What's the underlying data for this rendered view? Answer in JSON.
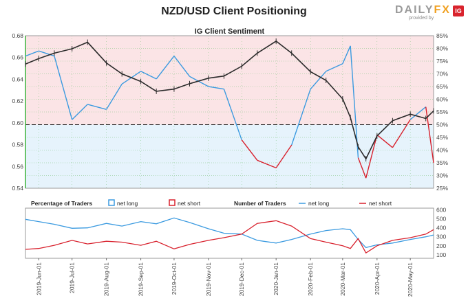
{
  "header": {
    "title": "NZD/USD Client Positioning",
    "brand": {
      "wordmark_main": "DAILY",
      "wordmark_fx": "FX",
      "byline": "provided by",
      "badge": "IG"
    }
  },
  "colors": {
    "price": "#2b2b2b",
    "net_long": "#3a9ae0",
    "net_short": "#d8202c",
    "long_zone": "#e6f3fc",
    "short_zone": "#fbe4e6",
    "grid": "#7cc47c",
    "top_axis_left": "#3bb33b"
  },
  "chart_data": [
    {
      "type": "line",
      "title": "IG Client Sentiment",
      "x": [
        "2019-05-20",
        "2019-06-01",
        "2019-06-15",
        "2019-07-01",
        "2019-07-15",
        "2019-08-01",
        "2019-08-15",
        "2019-09-01",
        "2019-09-15",
        "2019-10-01",
        "2019-10-15",
        "2019-11-01",
        "2019-11-15",
        "2019-12-01",
        "2019-12-15",
        "2020-01-01",
        "2020-01-15",
        "2020-02-01",
        "2020-02-15",
        "2020-03-01",
        "2020-03-08",
        "2020-03-15",
        "2020-03-22",
        "2020-04-01",
        "2020-04-15",
        "2020-05-01",
        "2020-05-15",
        "2020-05-22"
      ],
      "x_ticks": [
        "2019-Jun-01",
        "2019-Jul-01",
        "2019-Aug-01",
        "2019-Sep-01",
        "2019-Oct-01",
        "2019-Nov-01",
        "2019-Dec-01",
        "2020-Jan-01",
        "2020-Feb-01",
        "2020-Mar-01",
        "2020-Apr-01",
        "2020-May-01"
      ],
      "y_left_ticks": [
        "0.54",
        "0.56",
        "0.58",
        "0.60",
        "0.62",
        "0.64",
        "0.66",
        "0.68"
      ],
      "y_left_range": [
        0.54,
        0.68
      ],
      "y_right_ticks": [
        "25%",
        "30%",
        "35%",
        "40%",
        "45%",
        "50%",
        "55%",
        "60%",
        "65%",
        "70%",
        "75%",
        "80%",
        "85%"
      ],
      "y_right_range": [
        25,
        85
      ],
      "series": [
        {
          "name": "NZD/USD",
          "axis": "left",
          "values": [
            0.654,
            0.659,
            0.664,
            0.668,
            0.674,
            0.655,
            0.645,
            0.638,
            0.629,
            0.631,
            0.636,
            0.641,
            0.643,
            0.652,
            0.664,
            0.675,
            0.664,
            0.647,
            0.639,
            0.622,
            0.605,
            0.578,
            0.567,
            0.588,
            0.602,
            0.608,
            0.604,
            0.611
          ]
        },
        {
          "name": "net long",
          "axis": "right",
          "values": [
            77,
            79,
            77,
            52,
            58,
            56,
            66,
            71,
            68,
            77,
            69,
            65,
            64,
            44,
            36,
            33,
            42,
            64,
            71,
            74,
            81,
            37,
            29,
            46,
            41,
            52,
            57,
            35
          ]
        }
      ]
    },
    {
      "type": "line",
      "legend": [
        {
          "group": "Percentage of Traders",
          "items": [
            "net long",
            "net short"
          ]
        },
        {
          "group": "Number of Traders",
          "items": [
            "net long",
            "net short"
          ]
        }
      ],
      "y_ticks": [
        "100",
        "200",
        "300",
        "400",
        "500",
        "600"
      ],
      "y_range": [
        60,
        620
      ],
      "series": [
        {
          "name": "net long",
          "values": [
            495,
            470,
            440,
            395,
            400,
            450,
            420,
            470,
            445,
            510,
            460,
            390,
            340,
            330,
            260,
            230,
            270,
            330,
            370,
            390,
            380,
            270,
            180,
            210,
            230,
            270,
            300,
            320
          ]
        },
        {
          "name": "net short",
          "values": [
            160,
            170,
            205,
            260,
            220,
            250,
            240,
            205,
            250,
            165,
            215,
            260,
            290,
            330,
            450,
            480,
            420,
            280,
            240,
            200,
            170,
            280,
            120,
            200,
            260,
            290,
            330,
            380
          ]
        }
      ]
    }
  ]
}
